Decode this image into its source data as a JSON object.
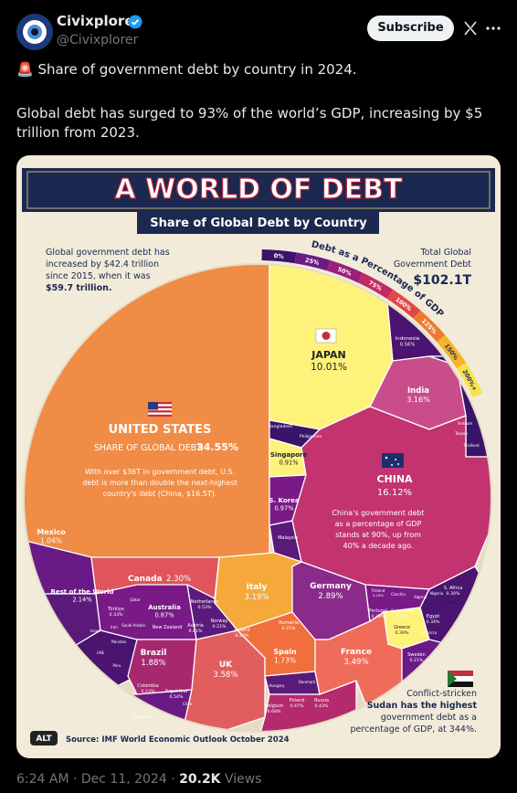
{
  "tweet": {
    "author": "Civixplorer",
    "handle": "@Civixplorer",
    "subscribe": "Subscribe",
    "text": [
      "🚨 Share of government debt by country in 2024.",
      "Global debt has surged to 93% of the world’s GDP, increasing by $5 trillion from 2023."
    ]
  },
  "infographic": {
    "title": "A WORLD OF DEBT",
    "subtitle": "Share of Global Debt by Country",
    "intro": [
      "Global government debt has",
      "increased by $42.4 trillion",
      "since 2015, when it was",
      "$59.7 trillion."
    ],
    "total": {
      "label": [
        "Total Global",
        "Government Debt"
      ],
      "value": "$102.1T"
    },
    "gdp_scale": {
      "title": "Debt as a Percentage of GDP",
      "labels": [
        "0%",
        "25%",
        "50%",
        "75%",
        "100%",
        "125%",
        "150%",
        "200%+"
      ]
    },
    "us": {
      "name": "UNITED STATES",
      "share_label": "SHARE OF GLOBAL DEBT:",
      "share": "34.55%",
      "note": [
        "With over $36T in government debt, U.S.",
        "debt is more than double the next-highest",
        "country's debt (China, $16.5T)."
      ]
    },
    "china": {
      "name": "CHINA",
      "share": "16.12%",
      "note": [
        "China's government debt",
        "as a percentage of GDP",
        "stands at 90%, up from",
        "40% a decade ago."
      ]
    },
    "countries": [
      {
        "name": "JAPAN",
        "share": "10.01%"
      },
      {
        "name": "India",
        "share": "3.16%"
      },
      {
        "name": "Indonesia",
        "share": "0.56%"
      },
      {
        "name": "Singapore",
        "share": "0.91%"
      },
      {
        "name": "S. Korea",
        "share": "0.97%"
      },
      {
        "name": "Malaysia"
      },
      {
        "name": "Philippines"
      },
      {
        "name": "Bangladesh"
      },
      {
        "name": "Vietnam"
      },
      {
        "name": "Taiwan"
      },
      {
        "name": "Thailand"
      },
      {
        "name": "Mexico",
        "share": "1.04%"
      },
      {
        "name": "Canada",
        "share": "2.30%"
      },
      {
        "name": "Italy",
        "share": "3.19%"
      },
      {
        "name": "Germany",
        "share": "2.89%"
      },
      {
        "name": "France",
        "share": "3.49%"
      },
      {
        "name": "UK",
        "share": "3.58%"
      },
      {
        "name": "Spain",
        "share": "1.73%"
      },
      {
        "name": "Brazil",
        "share": "1.88%"
      },
      {
        "name": "Australia",
        "share": "0.87%"
      },
      {
        "name": "Rest of the World",
        "share": "2.14%"
      },
      {
        "name": "Netherlands",
        "share": "0.53%"
      },
      {
        "name": "New Zealand"
      },
      {
        "name": "Austria",
        "share": "0.41%"
      },
      {
        "name": "Norway",
        "share": "0.21%"
      },
      {
        "name": "Ireland",
        "share": "0.22%"
      },
      {
        "name": "Romania",
        "share": "0.21%"
      },
      {
        "name": "Türkiye",
        "share": "0.33%"
      },
      {
        "name": "Qatar"
      },
      {
        "name": "Iran"
      },
      {
        "name": "Saudi Arabia"
      },
      {
        "name": "Israel"
      },
      {
        "name": "Pakistan"
      },
      {
        "name": "UAE"
      },
      {
        "name": "Peru"
      },
      {
        "name": "Colombia",
        "share": "0.23%"
      },
      {
        "name": "Argentina",
        "share": "0.54%"
      },
      {
        "name": "Chile"
      },
      {
        "name": "Caribbean"
      },
      {
        "name": "Hungary"
      },
      {
        "name": "Denmark"
      },
      {
        "name": "Belgium",
        "share": "0.68%"
      },
      {
        "name": "Poland",
        "share": "0.47%"
      },
      {
        "name": "Russia",
        "share": "0.43%"
      },
      {
        "name": "Finland",
        "share": "0.24%"
      },
      {
        "name": "Czechia"
      },
      {
        "name": "Portugal",
        "share": "0.28%"
      },
      {
        "name": "Switzerland",
        "share": "0.29%"
      },
      {
        "name": "Greece",
        "share": "0.39%"
      },
      {
        "name": "Algeria"
      },
      {
        "name": "Nigeria"
      },
      {
        "name": "S. Africa",
        "share": "0.30%"
      },
      {
        "name": "Sudan"
      },
      {
        "name": "Egypt",
        "share": "0.34%"
      },
      {
        "name": "Morocco"
      },
      {
        "name": "Sweden",
        "share": "0.21%"
      }
    ],
    "sudan_note": [
      "Conflict-stricken",
      "Sudan has the highest",
      "government debt as a",
      "percentage of GDP, at 344%."
    ],
    "alt": "ALT",
    "source": "Source: IMF World Economic Outlook October 2024"
  },
  "footer": {
    "time": "6:24 AM · Dec 11, 2024 ·",
    "views": "20.2K",
    "views_label": "Views"
  }
}
